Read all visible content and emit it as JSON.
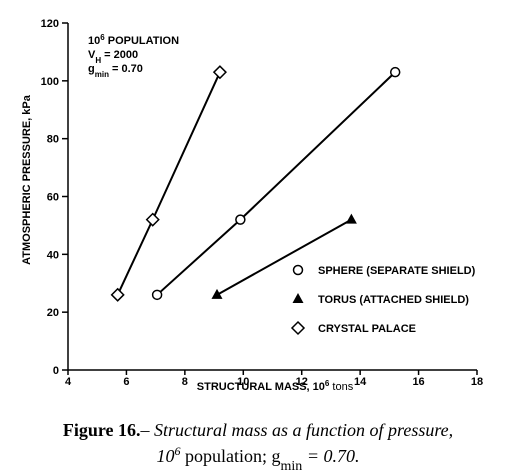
{
  "chart_data": {
    "type": "line",
    "xlabel": {
      "text": "STRUCTURAL MASS, 10",
      "sup": "6",
      "rest": " tons"
    },
    "ylabel": "ATMOSPHERIC PRESSURE, kPa",
    "annotations": [
      {
        "base": "10",
        "sup": "6",
        "rest": " POPULATION"
      },
      {
        "base": "V",
        "sub": "H",
        "rest": "  = 2000"
      },
      {
        "base": "g",
        "sub": "min",
        "rest": " = 0.70"
      }
    ],
    "xlim": [
      4,
      18
    ],
    "xticks": [
      4,
      6,
      8,
      10,
      12,
      14,
      16,
      18
    ],
    "ylim": [
      0,
      120
    ],
    "yticks": [
      0,
      20,
      40,
      60,
      80,
      100,
      120
    ],
    "legend": "lower right",
    "series": [
      {
        "name": "SPHERE (SEPARATE SHIELD)",
        "marker": "circle",
        "color": "#000000",
        "x": [
          7.05,
          9.9,
          15.2
        ],
        "values": [
          26,
          52,
          103
        ]
      },
      {
        "name": "TORUS (ATTACHED SHIELD)",
        "marker": "triangle",
        "color": "#000000",
        "x": [
          9.1,
          13.7
        ],
        "values": [
          26,
          52
        ]
      },
      {
        "name": "CRYSTAL PALACE",
        "marker": "diamond",
        "color": "#000000",
        "x": [
          5.7,
          6.9,
          9.2
        ],
        "values": [
          26,
          52,
          103
        ]
      }
    ]
  },
  "caption": {
    "label": "Figure 16.",
    "dash": "–",
    "line1": " Structural mass as a function of pressure,",
    "line2": {
      "base": "10",
      "sup": "6",
      "mid": " population; g",
      "sub": "min",
      "rest": " = 0.70."
    }
  }
}
